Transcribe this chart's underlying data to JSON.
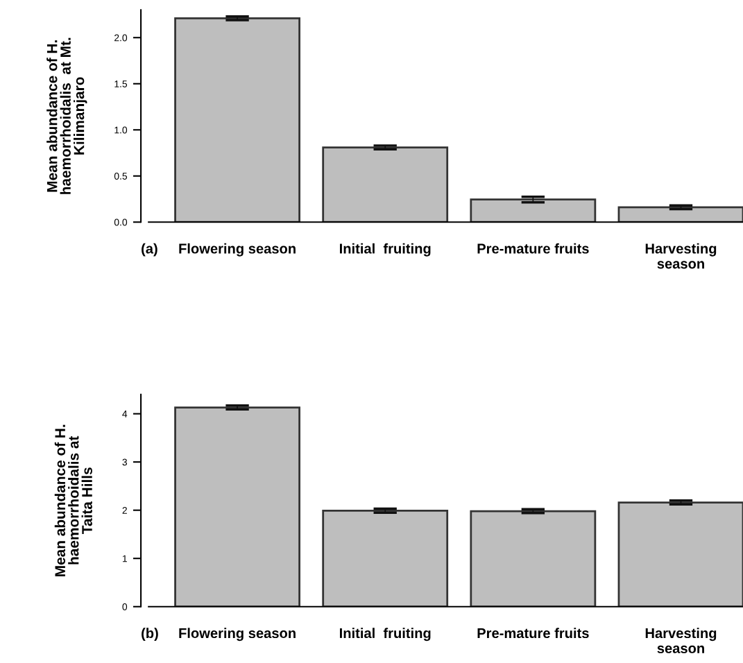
{
  "chart_data": [
    {
      "type": "bar",
      "ylabel": "Mean abundance of H.\nhaemorrhoidalis  at Mt.\nKilimanjaro",
      "categories": [
        "Flowering season",
        "Initial  fruiting",
        "Pre-mature fruits",
        "Harvesting\nseason"
      ],
      "values": [
        2.21,
        0.81,
        0.245,
        0.16
      ],
      "errors": [
        0.02,
        0.02,
        0.03,
        0.02
      ],
      "color": "#bebebe",
      "ylim": [
        0,
        2.3
      ],
      "yticks": [
        {
          "value": 0,
          "label": "0.0"
        },
        0.5,
        {
          "value": 1,
          "label": "1.0"
        },
        1.5,
        {
          "value": 2,
          "label": "2.0"
        }
      ],
      "grid": false,
      "annotations": [
        "(a)"
      ]
    },
    {
      "type": "bar",
      "ylabel": "Mean abundance of H.\nhaemorrhoidalis at\nTaita Hills",
      "categories": [
        "Flowering season",
        "Initial  fruiting",
        "Pre-mature fruits",
        "Harvesting\nseason"
      ],
      "values": [
        4.13,
        1.99,
        1.98,
        2.16
      ],
      "errors": [
        0.04,
        0.04,
        0.04,
        0.04
      ],
      "color": "#bebebe",
      "ylim": [
        0,
        4.4
      ],
      "yticks": [
        0,
        1,
        2,
        3,
        4
      ],
      "grid": false,
      "annotations": [
        "(b)"
      ]
    }
  ]
}
